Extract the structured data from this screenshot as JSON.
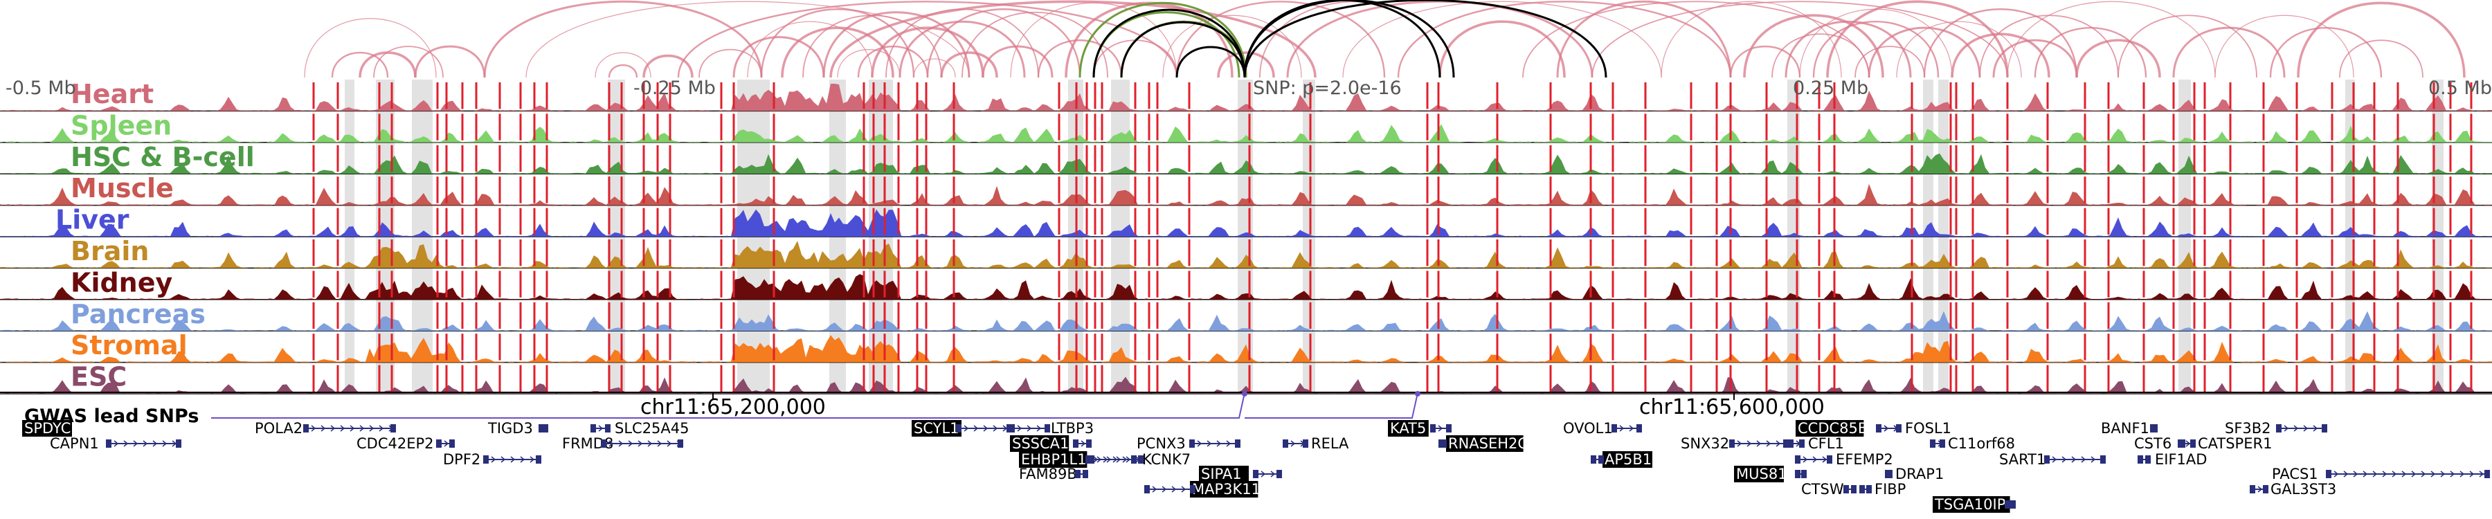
{
  "colors": {
    "arc": "#d9788a",
    "arc_green": "#6f9a3a",
    "arc_black": "#000000",
    "highlight_band": "#e2e2e2",
    "marker": "#e0202c",
    "gwas": "#6b4fc8",
    "gene": "#2a2f7a"
  },
  "scale": {
    "left": "-0.5 Mb",
    "left_mid": "-0.25 Mb",
    "snp": "SNP: p=2.0e-16",
    "right_mid": "0.25 Mb",
    "right": "0.5 Mb"
  },
  "tracks": [
    {
      "name": "Heart",
      "color": "#d06a78"
    },
    {
      "name": "Spleen",
      "color": "#7fd36a"
    },
    {
      "name": "HSC & B-cell",
      "color": "#4e9a47"
    },
    {
      "name": "Muscle",
      "color": "#c95752"
    },
    {
      "name": "Liver",
      "color": "#4b4fd6"
    },
    {
      "name": "Brain",
      "color": "#c08a25"
    },
    {
      "name": "Kidney",
      "color": "#6a0b0b"
    },
    {
      "name": "Pancreas",
      "color": "#7f9fdc"
    },
    {
      "name": "Stromal",
      "color": "#f57d1f"
    },
    {
      "name": "ESC",
      "color": "#8a4b6a"
    }
  ],
  "coordinates": {
    "left": "chr11:65,200,000",
    "right": "chr11:65,600,000"
  },
  "gwas_label": "GWAS lead SNPs",
  "genes": [
    {
      "name": "SPDYC",
      "highlight": true
    },
    {
      "name": "CAPN1",
      "highlight": false
    },
    {
      "name": "POLA2",
      "highlight": false
    },
    {
      "name": "CDC42EP2",
      "highlight": false
    },
    {
      "name": "DPF2",
      "highlight": false
    },
    {
      "name": "TIGD3",
      "highlight": false
    },
    {
      "name": "SLC25A45",
      "highlight": false
    },
    {
      "name": "FRMD8",
      "highlight": false
    },
    {
      "name": "SCYL1",
      "highlight": true
    },
    {
      "name": "LTBP3",
      "highlight": false
    },
    {
      "name": "SSSCA1",
      "highlight": true
    },
    {
      "name": "FAM89B",
      "highlight": false
    },
    {
      "name": "EHBP1L1",
      "highlight": true
    },
    {
      "name": "KCNK7",
      "highlight": false
    },
    {
      "name": "PCNX3",
      "highlight": false
    },
    {
      "name": "SIPA1",
      "highlight": true
    },
    {
      "name": "MAP3K11",
      "highlight": true
    },
    {
      "name": "RELA",
      "highlight": false
    },
    {
      "name": "KAT5",
      "highlight": true
    },
    {
      "name": "RNASEH2C",
      "highlight": true
    },
    {
      "name": "OVOL1",
      "highlight": false
    },
    {
      "name": "AP5B1",
      "highlight": true
    },
    {
      "name": "SNX32",
      "highlight": false
    },
    {
      "name": "CFL1",
      "highlight": false
    },
    {
      "name": "MUS81",
      "highlight": true
    },
    {
      "name": "CTSW",
      "highlight": false
    },
    {
      "name": "FIBP",
      "highlight": false
    },
    {
      "name": "EFEMP2",
      "highlight": false
    },
    {
      "name": "CCDC85B",
      "highlight": true
    },
    {
      "name": "FOSL1",
      "highlight": false
    },
    {
      "name": "DRAP1",
      "highlight": false
    },
    {
      "name": "C11orf68",
      "highlight": false
    },
    {
      "name": "TSGA10IP",
      "highlight": true
    },
    {
      "name": "SART1",
      "highlight": false
    },
    {
      "name": "BANF1",
      "highlight": false
    },
    {
      "name": "CST6",
      "highlight": false
    },
    {
      "name": "EIF1AD",
      "highlight": false
    },
    {
      "name": "SF3B2",
      "highlight": false
    },
    {
      "name": "CATSPER1",
      "highlight": false
    },
    {
      "name": "PACS1",
      "highlight": false
    },
    {
      "name": "GAL3ST3",
      "highlight": false
    }
  ]
}
